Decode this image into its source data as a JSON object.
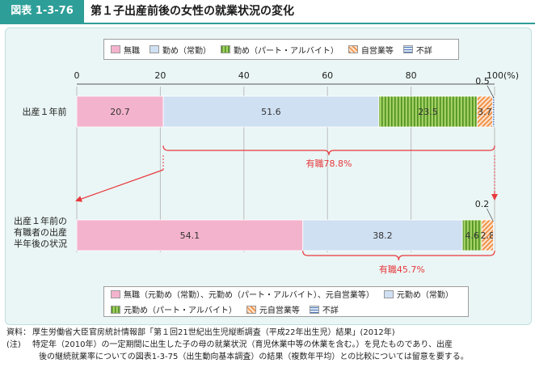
{
  "header": {
    "tag": "図表 1-3-76",
    "title": "第１子出産前後の女性の就業状況の変化"
  },
  "colors": {
    "accent": "#2e9e98",
    "pink": "#f4b3cc",
    "lightblue": "#cfe0f3",
    "green": "#8cc63f",
    "orange": "#f4a46a",
    "striped_blue": "#7c9fcd",
    "red": "#e8383d"
  },
  "legend_top": [
    {
      "label": "無職",
      "swatch": "pink"
    },
    {
      "label": "勤め（常勤）",
      "swatch": "lightblue"
    },
    {
      "label": "勤め（パート・アルバイト）",
      "swatch": "green"
    },
    {
      "label": "自営業等",
      "swatch": "orange"
    },
    {
      "label": "不詳",
      "swatch": "striped_blue"
    }
  ],
  "legend_bottom": [
    {
      "label": "無職（元勤め（常勤）、元勤め（パート・アルバイト）、元自営業等）",
      "swatch": "pink"
    },
    {
      "label": "元勤め（常勤）",
      "swatch": "lightblue"
    },
    {
      "label": "元勤め（パート・アルバイト）",
      "swatch": "green"
    },
    {
      "label": "元自営業等",
      "swatch": "orange"
    },
    {
      "label": "不詳",
      "swatch": "striped_blue"
    }
  ],
  "chart_data": {
    "type": "bar",
    "orientation": "horizontal-stacked",
    "xlim": [
      0,
      100
    ],
    "ticks": [
      0,
      20,
      40,
      60,
      80,
      100
    ],
    "unit_label": "100(%)",
    "categories": [
      "出産１年前",
      "出産１年前の有職者の出産半年後の状況"
    ],
    "category_lines": [
      [
        "出産１年前"
      ],
      [
        "出産１年前の",
        "有職者の出産",
        "半年後の状況"
      ]
    ],
    "rows": [
      {
        "segments": [
          {
            "name": "無職",
            "value": 20.7,
            "label": "20.7",
            "color": "pink"
          },
          {
            "name": "勤め（常勤）",
            "value": 51.6,
            "label": "51.6",
            "color": "lightblue"
          },
          {
            "name": "勤め（パート・アルバイト）",
            "value": 23.5,
            "label": "23.5",
            "color": "green"
          },
          {
            "name": "自営業等",
            "value": 3.7,
            "label": "3.7",
            "color": "orange"
          },
          {
            "name": "不詳",
            "value": 0.5,
            "label": "0.5",
            "color": "striped_blue"
          }
        ]
      },
      {
        "segments": [
          {
            "name": "無職",
            "value": 54.1,
            "label": "54.1",
            "color": "pink"
          },
          {
            "name": "元勤め（常勤）",
            "value": 38.2,
            "label": "38.2",
            "color": "lightblue"
          },
          {
            "name": "元勤め（パート・アルバイト）",
            "value": 4.6,
            "label": "4.6",
            "color": "green"
          },
          {
            "name": "元自営業等",
            "value": 2.8,
            "label": "2.8",
            "color": "orange"
          },
          {
            "name": "不詳",
            "value": 0.2,
            "label": "0.2",
            "color": "striped_blue"
          }
        ]
      }
    ],
    "annotations": [
      {
        "label": "有職78.8%",
        "range": [
          20.7,
          100
        ]
      },
      {
        "label": "有職45.7%",
        "range": [
          54.1,
          100
        ]
      }
    ]
  },
  "footer": {
    "source_label": "資料：",
    "source_text": "厚生労働省大臣官房統計情報部「第１回21世紀出生児縦断調査（平成22年出生児）結果」(2012年)",
    "note_label": "(注)",
    "note_lines": [
      "特定年（2010年）の一定期間に出生した子の母の就業状況（育児休業中等の休業を含む。）を見たものであり、出産",
      "後の継続就業率についての図表1-3-75（出生動向基本調査）の結果（複数年平均）との比較については留意を要する。"
    ]
  }
}
